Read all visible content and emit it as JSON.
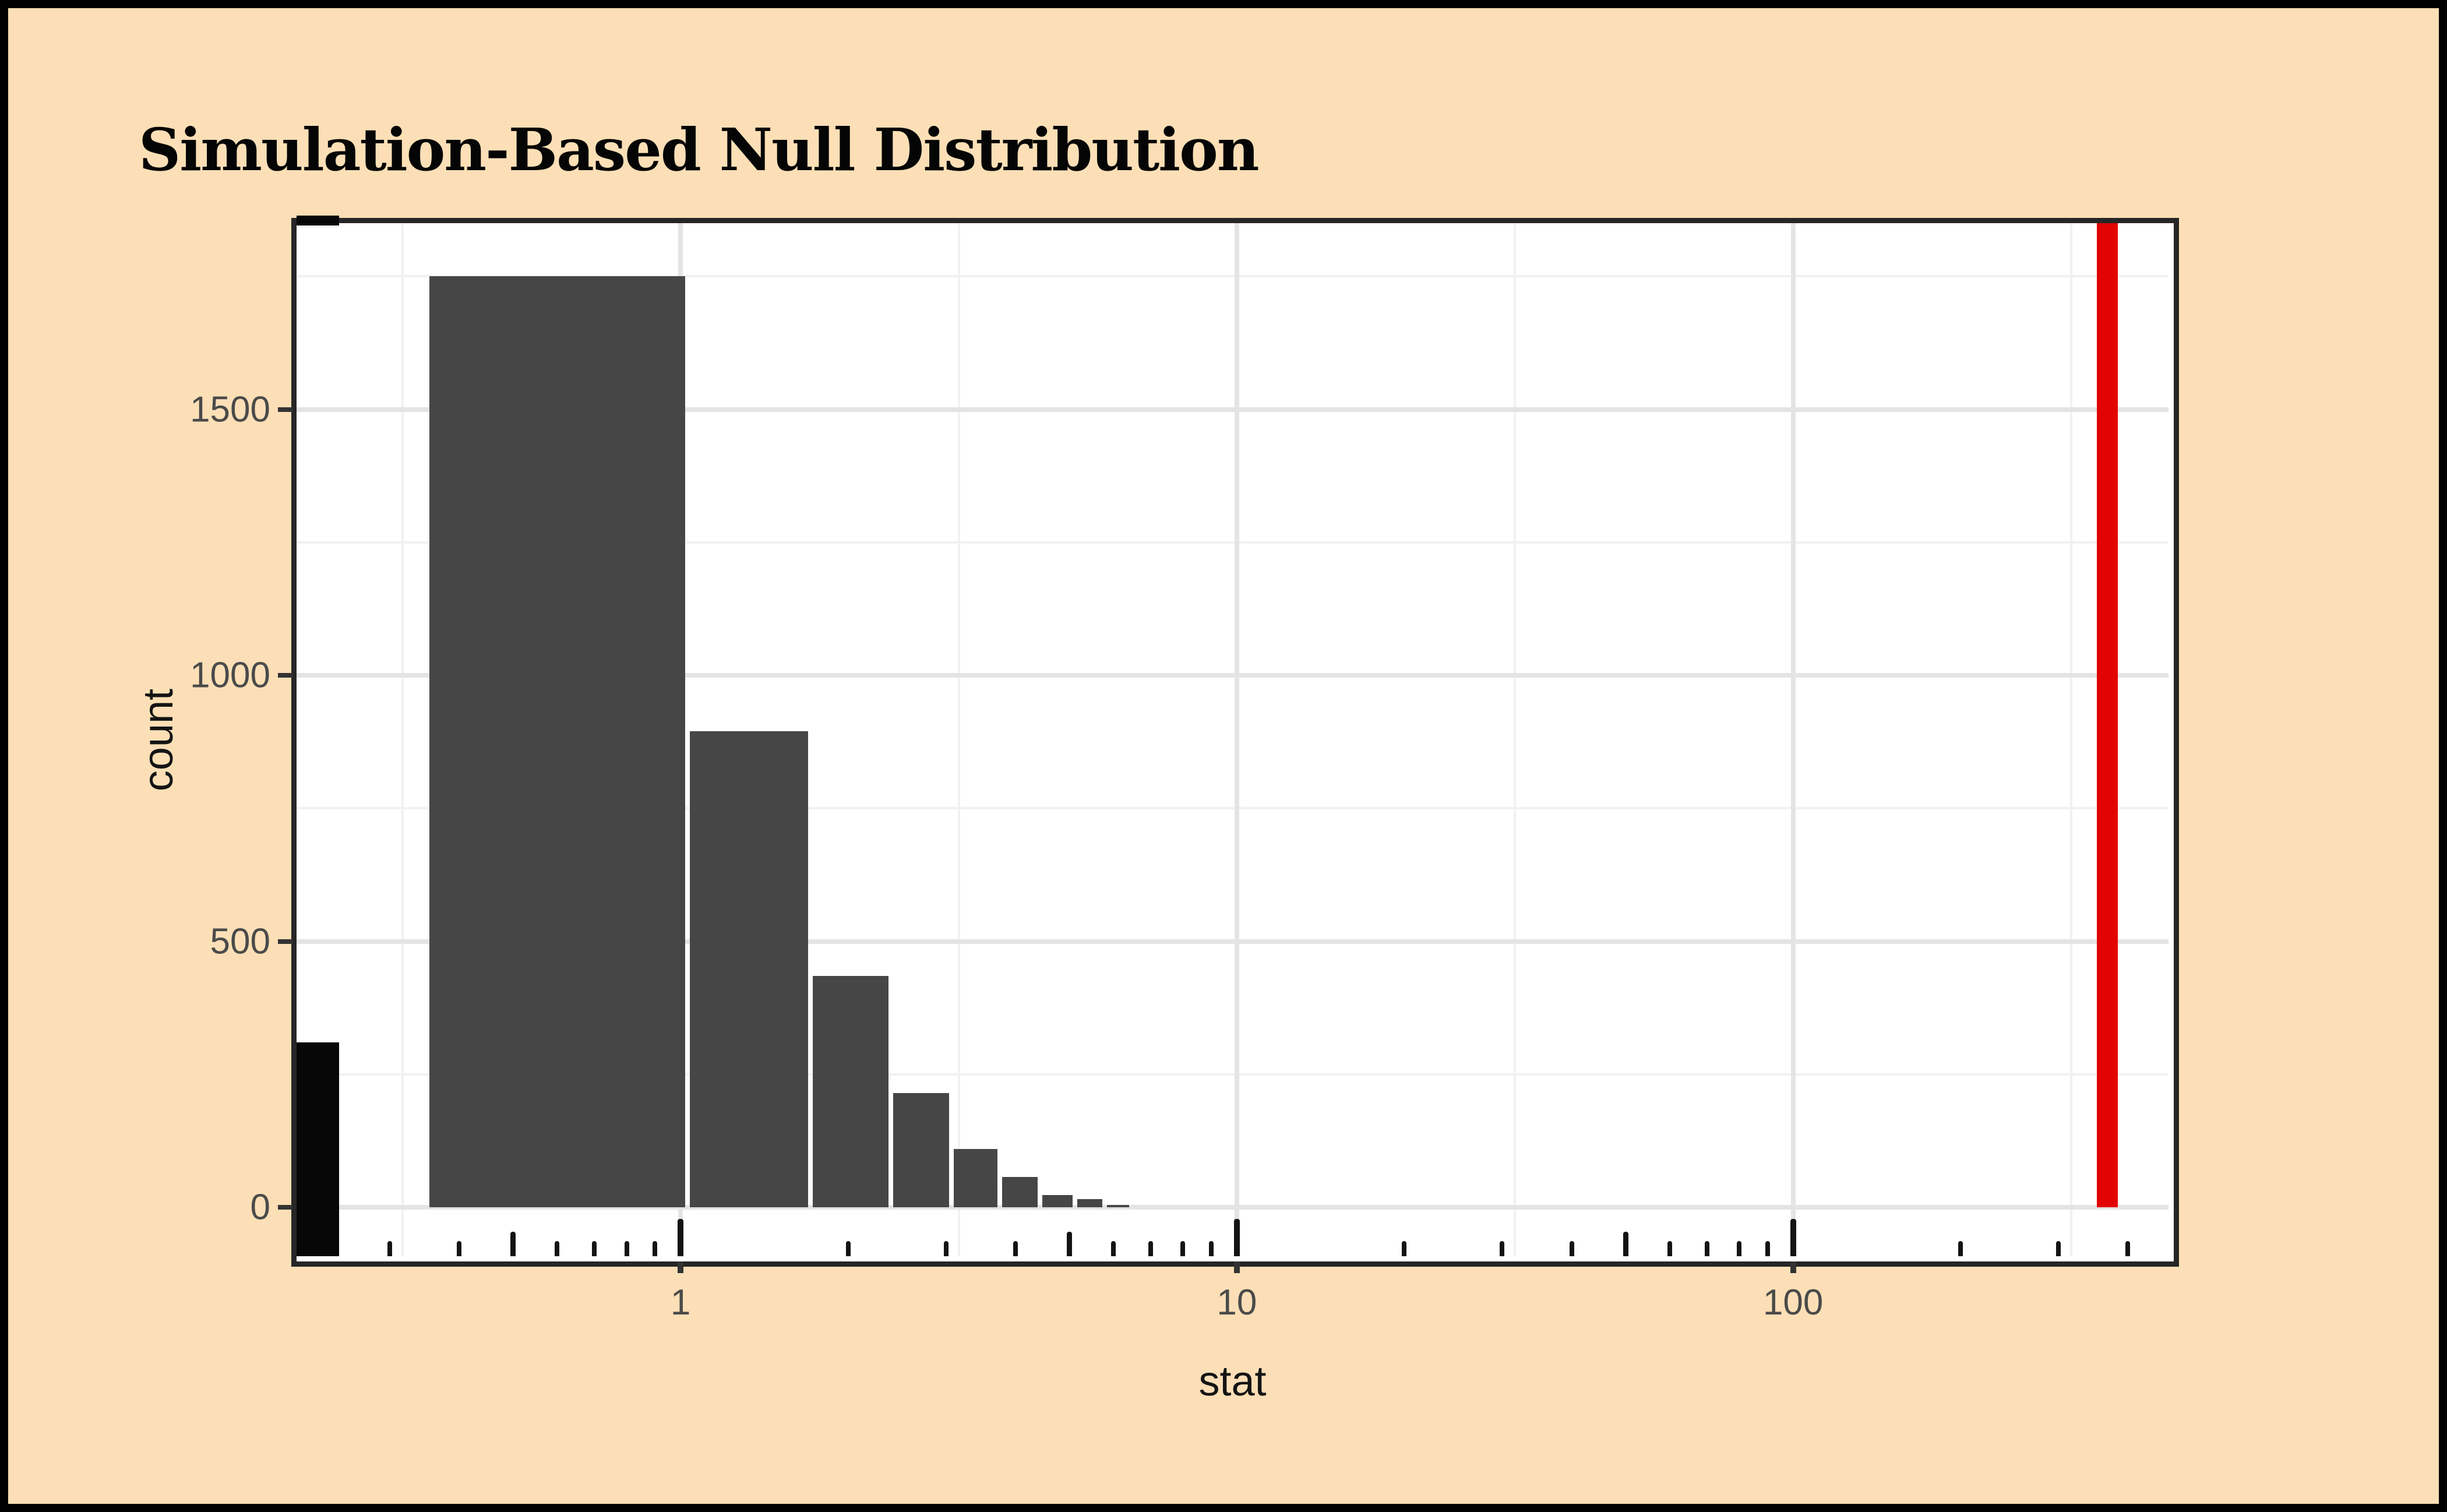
{
  "title": "Simulation-Based Null Distribution",
  "chart_data": {
    "type": "bar",
    "subtype": "histogram-on-log10-x",
    "title": "Simulation-Based Null Distribution",
    "xlabel": "stat",
    "ylabel": "count",
    "x_scale": "log10",
    "x_domain": [
      0.204,
      473
    ],
    "y_domain": [
      -92,
      1850
    ],
    "x_breaks": [
      1,
      10,
      100
    ],
    "x_tick_labels": [
      "1",
      "10",
      "100"
    ],
    "x_minor_breaks": [
      0.3162,
      3.1623,
      31.623,
      316.23
    ],
    "y_breaks": [
      0,
      500,
      1000,
      1500
    ],
    "y_tick_labels": [
      "0",
      "500",
      "1000",
      "1500"
    ],
    "y_minor_breaks": [
      250,
      750,
      1250,
      1750
    ],
    "grid": true,
    "legend_position": "none",
    "bins": {
      "edges": [
        0.35,
        1.03,
        1.71,
        2.39,
        3.07,
        3.75,
        4.43,
        5.11,
        5.79,
        6.47
      ],
      "counts": [
        1750,
        895,
        435,
        215,
        110,
        57,
        23,
        15,
        4
      ]
    },
    "edge_bin": {
      "x_from": 0.204,
      "x_to": 0.243,
      "count": 310,
      "extends_to_panel_bottom": true,
      "clipped_stub_at_top": true
    },
    "observed_stat": 367,
    "inside_log_ticks": {
      "long_at": [
        1,
        10,
        100
      ],
      "medium_at": [
        0.5,
        5,
        50
      ],
      "short_mantissas": [
        2,
        3,
        4,
        6,
        7,
        8,
        9
      ],
      "decades": [
        -1,
        0,
        1,
        2
      ]
    }
  },
  "colors": {
    "page_background": "#FCDFB6",
    "page_border": "#000000",
    "panel_background": "#FFFFFF",
    "panel_border": "#262626",
    "bar_fill": "#464646",
    "bar_gap": "#FFFFFF",
    "edge_bar_fill": "#070707",
    "observed_line": "#E20303",
    "grid_major": "#E4E4E4",
    "grid_minor": "#F1F1F1",
    "tick_text": "#4A4A4A",
    "axis_title_text": "#141414",
    "title_text": "#050505"
  }
}
